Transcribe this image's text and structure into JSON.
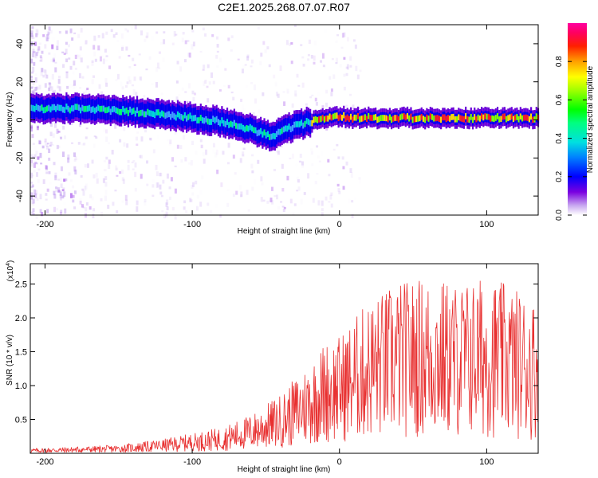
{
  "title": "C2E1.2025.268.07.07.R07",
  "chart_data": [
    {
      "type": "heatmap",
      "name": "spectrogram",
      "xlabel": "Height of straight line (km)",
      "ylabel": "Frequency (Hz)",
      "xlim": [
        -210,
        135
      ],
      "ylim": [
        -50,
        50
      ],
      "xticks": [
        -200,
        -100,
        0,
        100
      ],
      "xtick_labels": [
        "-200",
        "-100",
        "0",
        "100"
      ],
      "yticks": [
        -40,
        -20,
        0,
        20,
        40
      ],
      "ytick_labels": [
        "-40",
        "-20",
        "0",
        "20",
        "40"
      ],
      "ridge": {
        "x": [
          -210,
          -180,
          -150,
          -120,
          -100,
          -80,
          -70,
          -60,
          -50,
          -45,
          -40,
          -30,
          -20,
          -10,
          0,
          10,
          50,
          100,
          135
        ],
        "y": [
          6,
          6,
          5,
          3,
          1,
          -1,
          -3,
          -5,
          -8,
          -9,
          -6,
          -3,
          -1,
          1,
          2,
          1,
          1,
          1,
          1
        ]
      },
      "colorbar": {
        "label": "Normalized spectral amplitude",
        "range": [
          0,
          1
        ],
        "ticks": [
          0.0,
          0.2,
          0.4,
          0.6,
          0.8
        ],
        "tick_labels": [
          "0.0",
          "0.2",
          "0.4",
          "0.6",
          "0.8"
        ]
      }
    },
    {
      "type": "line",
      "name": "snr",
      "xlabel": "Height of straight line (km)",
      "ylabel": "SNR (10 * v/v)",
      "scale_label": "(x10",
      "scale_exp": "4",
      "scale_close": ")",
      "xlim": [
        -210,
        135
      ],
      "ylim": [
        0,
        2.8
      ],
      "xticks": [
        -200,
        -100,
        0,
        100
      ],
      "xtick_labels": [
        "-200",
        "-100",
        "0",
        "100"
      ],
      "yticks": [
        0.5,
        1.0,
        1.5,
        2.0,
        2.5
      ],
      "ytick_labels": [
        "0.5",
        "1.0",
        "1.5",
        "2.0",
        "2.5"
      ],
      "color": "#e83030",
      "envelope": {
        "x": [
          -210,
          -150,
          -120,
          -100,
          -80,
          -60,
          -40,
          -20,
          -10,
          0,
          10,
          20,
          40,
          60,
          80,
          100,
          120,
          135
        ],
        "y": [
          0.04,
          0.07,
          0.12,
          0.17,
          0.22,
          0.33,
          0.5,
          0.78,
          0.95,
          1.0,
          1.15,
          1.3,
          1.45,
          1.5,
          1.45,
          1.5,
          1.4,
          1.3
        ]
      }
    }
  ]
}
